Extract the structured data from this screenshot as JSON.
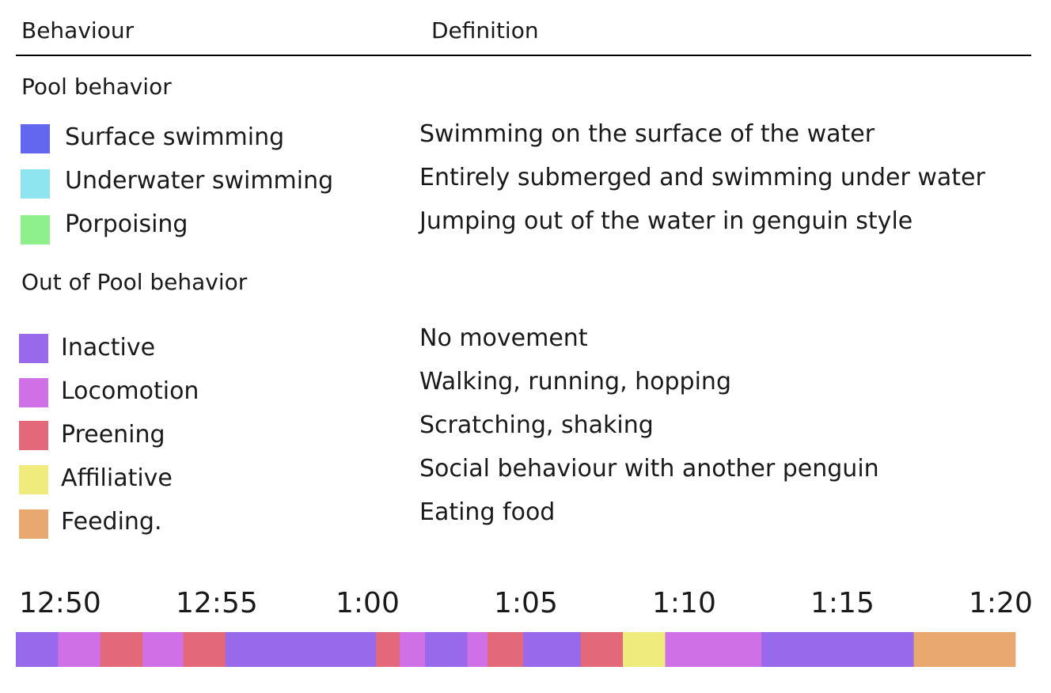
{
  "header": {
    "behaviour_label": "Behaviour",
    "definition_label": "Definition"
  },
  "sections": {
    "pool": {
      "title": "Pool behavior",
      "items": [
        {
          "label": "Surface swimming",
          "definition": "Swimming on the surface of the water",
          "color": "#6366ee"
        },
        {
          "label": "Underwater swimming",
          "definition": "Entirely submerged and swimming under water",
          "color": "#8ee5ef"
        },
        {
          "label": "Porpoising",
          "definition": "Jumping out of the water in genguin style",
          "color": "#8ef08a"
        }
      ]
    },
    "out_of_pool": {
      "title": "Out of Pool behavior",
      "items": [
        {
          "label": "Inactive",
          "definition": "No movement",
          "color": "#9869ea"
        },
        {
          "label": "Locomotion",
          "definition": "Walking, running, hopping",
          "color": "#cf70e6"
        },
        {
          "label": "Preening",
          "definition": "Scratching, shaking",
          "color": "#e2687a"
        },
        {
          "label": "Affiliative",
          "definition": "Social behaviour with another penguin",
          "color": "#efeb7c"
        },
        {
          "label": "Feeding.",
          "definition": "Eating food",
          "color": "#e9a870"
        }
      ]
    }
  },
  "chart_data": {
    "type": "bar",
    "orientation": "horizontal-timeline",
    "x_ticks": [
      "12:50",
      "12:55",
      "1:00",
      "1:05",
      "1:10",
      "1:15",
      "1:20"
    ],
    "x_range_minutes": [
      0,
      30
    ],
    "segments": [
      {
        "behavior": "Inactive",
        "start": 0.0,
        "end": 1.25
      },
      {
        "behavior": "Locomotion",
        "start": 1.25,
        "end": 2.5
      },
      {
        "behavior": "Preening",
        "start": 2.5,
        "end": 3.75
      },
      {
        "behavior": "Locomotion",
        "start": 3.75,
        "end": 4.95
      },
      {
        "behavior": "Preening",
        "start": 4.95,
        "end": 6.2
      },
      {
        "behavior": "Inactive",
        "start": 6.2,
        "end": 10.65
      },
      {
        "behavior": "Preening",
        "start": 10.65,
        "end": 11.35
      },
      {
        "behavior": "Locomotion",
        "start": 11.35,
        "end": 12.1
      },
      {
        "behavior": "Inactive",
        "start": 12.1,
        "end": 13.35
      },
      {
        "behavior": "Locomotion",
        "start": 13.35,
        "end": 13.95
      },
      {
        "behavior": "Preening",
        "start": 13.95,
        "end": 15.0
      },
      {
        "behavior": "Inactive",
        "start": 15.0,
        "end": 16.7
      },
      {
        "behavior": "Preening",
        "start": 16.7,
        "end": 17.95
      },
      {
        "behavior": "Affiliative",
        "start": 17.95,
        "end": 19.2
      },
      {
        "behavior": "Locomotion",
        "start": 19.2,
        "end": 22.05
      },
      {
        "behavior": "Inactive",
        "start": 22.05,
        "end": 26.55
      },
      {
        "behavior": "Feeding.",
        "start": 26.55,
        "end": 29.55
      }
    ],
    "colors": {
      "Inactive": "#9869ea",
      "Locomotion": "#cf70e6",
      "Preening": "#e2687a",
      "Affiliative": "#efeb7c",
      "Feeding.": "#e9a870"
    }
  }
}
